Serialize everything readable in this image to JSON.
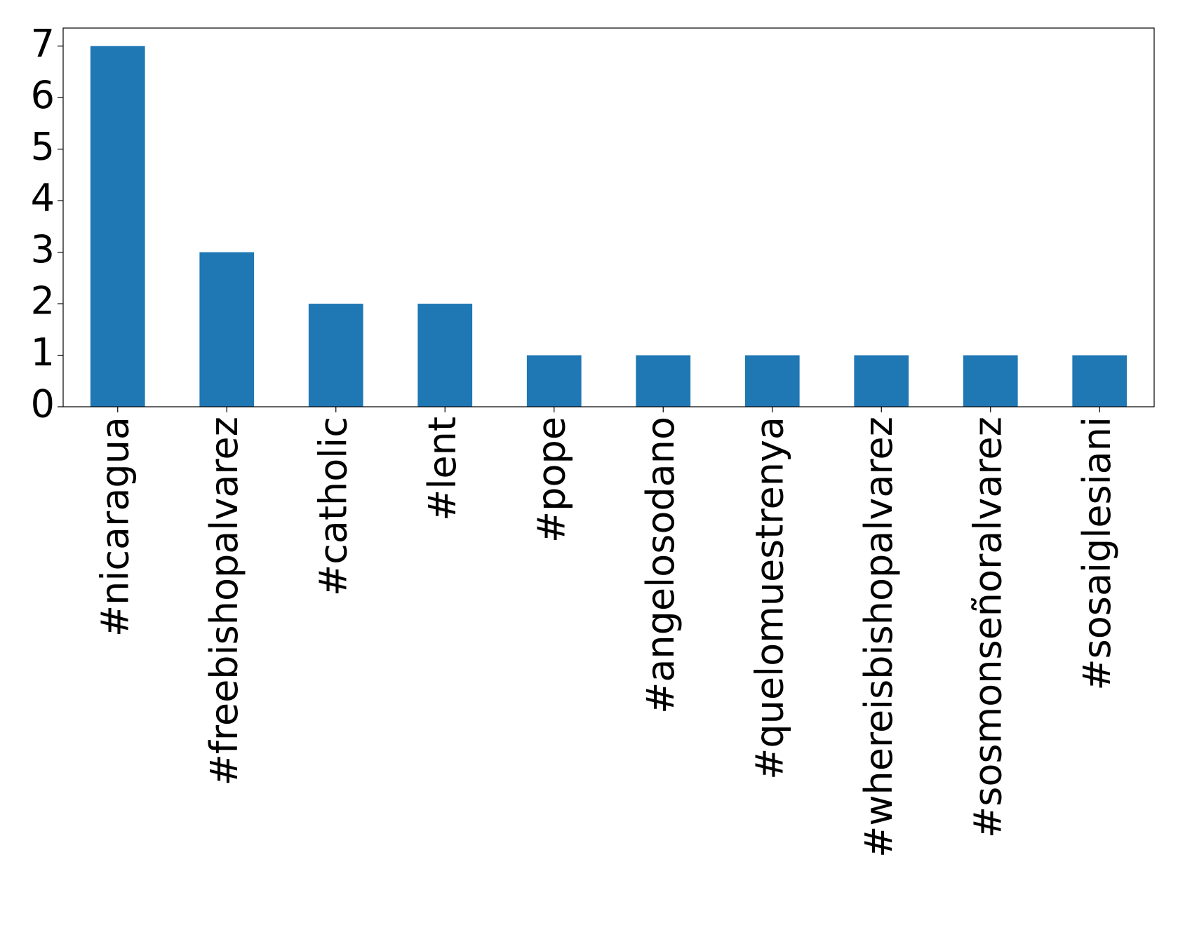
{
  "chart_data": {
    "type": "bar",
    "categories": [
      "#nicaragua",
      "#freebishopalvarez",
      "#catholic",
      "#lent",
      "#pope",
      "#angelosodano",
      "#quelomuestrenya",
      "#whereisbishopalvarez",
      "#sosmonseñoralvarez",
      "#sosaiglesiani"
    ],
    "values": [
      7,
      3,
      2,
      2,
      1,
      1,
      1,
      1,
      1,
      1
    ],
    "color": "#1f77b4",
    "ylim": [
      0,
      7.35
    ],
    "yticks": [
      0,
      1,
      2,
      3,
      4,
      5,
      6,
      7
    ],
    "grid": false
  }
}
